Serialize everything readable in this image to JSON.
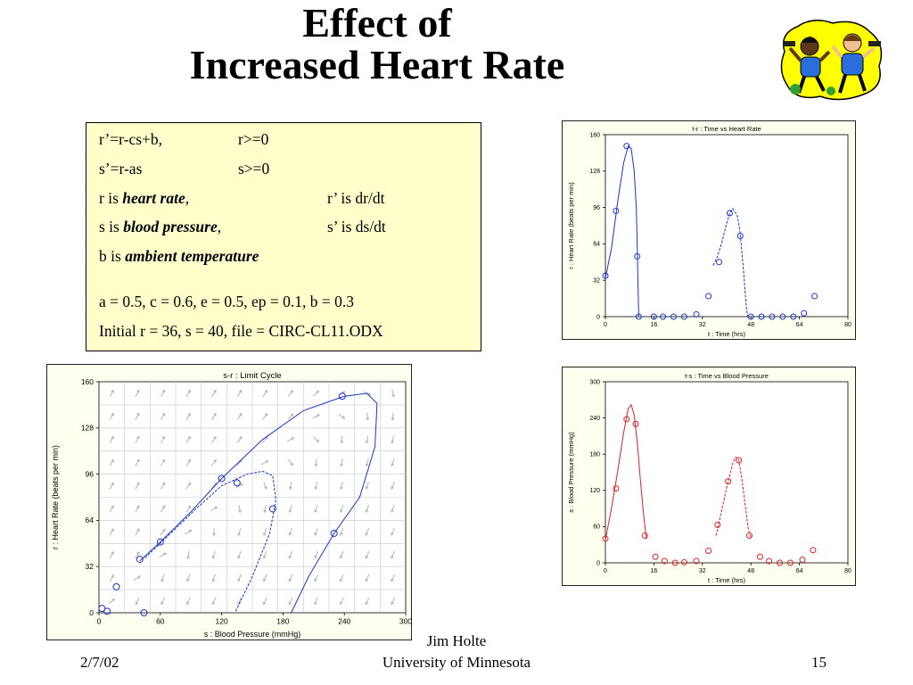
{
  "slide": {
    "title_line1": "Effect of",
    "title_line2": "Increased Heart Rate",
    "clipart_icon": "exercising-people-clipart",
    "footer": {
      "date": "2/7/02",
      "author": "Jim Holte",
      "org": "University of Minnesota",
      "page": "15"
    }
  },
  "equations": {
    "eq1_left": "r’=r-cs+b,",
    "eq1_right": "r>=0",
    "eq2_left": "s’=r-as",
    "eq2_right": "s>=0",
    "def_r_prefix": "r is ",
    "def_r_term": "heart rate",
    "def_r_suffix": ",",
    "def_r_deriv": "r’ is dr/dt",
    "def_s_prefix": "s is ",
    "def_s_term": "blood pressure",
    "def_s_suffix": ",",
    "def_s_deriv": "s’ is ds/dt",
    "def_b_prefix": "b is ",
    "def_b_term": "ambient temperature",
    "params": "a = 0.5, c = 0.6, e = 0.5, ep = 0.1, b = 0.3",
    "initial": "Initial r = 36, s = 40, file = CIRC-CL11.ODX"
  },
  "colors": {
    "blue_series": "#1a35c8",
    "red_series": "#e02020",
    "box_fill": "#ffffcc",
    "plot_fill": "#fffff0",
    "vector_arrows": "#b4b4b4"
  },
  "chart_data": [
    {
      "id": "chart_tr",
      "type": "line",
      "title": "t-r : Time vs Heart Rate",
      "xlabel": "t : Time (hrs)",
      "ylabel": "r : Heart Rate (beats per min)",
      "xlim": [
        0,
        80
      ],
      "ylim": [
        0,
        160
      ],
      "xticks": [
        0,
        16,
        32,
        48,
        64,
        80
      ],
      "yticks": [
        0,
        32,
        64,
        96,
        128,
        160
      ],
      "color": "#1a35c8",
      "markers": [
        [
          0,
          36
        ],
        [
          3.5,
          93
        ],
        [
          7,
          150
        ],
        [
          10.5,
          53
        ],
        [
          11,
          0
        ],
        [
          16,
          0
        ],
        [
          19,
          0
        ],
        [
          22.5,
          0
        ],
        [
          26,
          0
        ],
        [
          30,
          2
        ],
        [
          34,
          18
        ],
        [
          37.5,
          48
        ],
        [
          41,
          91
        ],
        [
          44.5,
          71
        ],
        [
          48,
          0
        ],
        [
          51.5,
          0
        ],
        [
          55,
          0
        ],
        [
          58.5,
          0
        ],
        [
          62,
          0
        ],
        [
          65.5,
          3
        ],
        [
          69,
          18
        ]
      ],
      "curves": [
        [
          [
            0,
            34
          ],
          [
            2,
            60
          ],
          [
            4,
            100
          ],
          [
            6,
            135
          ],
          [
            7.5,
            150
          ],
          [
            8.5,
            148
          ],
          [
            9.5,
            128
          ],
          [
            10.2,
            95
          ],
          [
            10.6,
            50
          ],
          [
            11,
            0
          ]
        ],
        [
          [
            35.5,
            45
          ],
          [
            37,
            53
          ],
          [
            38.5,
            66
          ],
          [
            40,
            82
          ],
          [
            41,
            91
          ],
          [
            42,
            95
          ],
          [
            43.5,
            89
          ],
          [
            44.5,
            73
          ],
          [
            45.5,
            42
          ],
          [
            46.5,
            8
          ],
          [
            47,
            0
          ]
        ]
      ]
    },
    {
      "id": "chart_sr",
      "type": "line",
      "title": "s-r : Limit Cycle",
      "xlabel": "s : Blood Pressure (mmHg)",
      "ylabel": "r : Heart Rate (beats per min)",
      "xlim": [
        0,
        300
      ],
      "ylim": [
        0,
        160
      ],
      "xticks": [
        0,
        60,
        120,
        180,
        240,
        300
      ],
      "yticks": [
        0,
        32,
        64,
        96,
        128,
        160
      ],
      "color": "#1a35c8",
      "markers": [
        [
          3,
          3
        ],
        [
          8,
          1
        ],
        [
          17,
          18
        ],
        [
          44,
          0
        ],
        [
          40,
          37
        ],
        [
          60,
          49
        ],
        [
          120,
          93
        ],
        [
          135,
          90
        ],
        [
          170,
          72
        ],
        [
          230,
          55
        ],
        [
          238,
          150
        ]
      ],
      "curves": [
        [
          [
            40,
            36
          ],
          [
            60,
            49
          ],
          [
            90,
            70
          ],
          [
            120,
            93
          ],
          [
            160,
            120
          ],
          [
            200,
            140
          ],
          [
            240,
            150
          ],
          [
            262,
            152
          ],
          [
            272,
            145
          ],
          [
            270,
            115
          ],
          [
            255,
            80
          ],
          [
            230,
            55
          ],
          [
            205,
            25
          ],
          [
            188,
            0
          ]
        ],
        [
          [
            45,
            38
          ],
          [
            70,
            55
          ],
          [
            95,
            72
          ],
          [
            120,
            88
          ],
          [
            145,
            96
          ],
          [
            160,
            98
          ],
          [
            170,
            95
          ],
          [
            173,
            78
          ],
          [
            167,
            55
          ],
          [
            150,
            25
          ],
          [
            133,
            0
          ]
        ]
      ]
    },
    {
      "id": "chart_ts",
      "type": "line",
      "title": "t-s : Time vs Blood Pressure",
      "xlabel": "t : Time (hrs)",
      "ylabel": "s : Blood Pressure (mmHg)",
      "xlim": [
        0,
        80
      ],
      "ylim": [
        0,
        300
      ],
      "xticks": [
        0,
        16,
        32,
        48,
        64,
        80
      ],
      "yticks": [
        0,
        60,
        120,
        180,
        240,
        300
      ],
      "color": "#e02020",
      "markers": [
        [
          0,
          40
        ],
        [
          3.5,
          123
        ],
        [
          7,
          238
        ],
        [
          10,
          230
        ],
        [
          13,
          45
        ],
        [
          16.5,
          10
        ],
        [
          19.5,
          3
        ],
        [
          23,
          0
        ],
        [
          26,
          1
        ],
        [
          30,
          3
        ],
        [
          34,
          20
        ],
        [
          37,
          63
        ],
        [
          40.5,
          135
        ],
        [
          44,
          170
        ],
        [
          47.5,
          45
        ],
        [
          51,
          10
        ],
        [
          54,
          3
        ],
        [
          57.5,
          0
        ],
        [
          61,
          0
        ],
        [
          65,
          5
        ],
        [
          68.5,
          21
        ]
      ],
      "curves": [
        [
          [
            0,
            38
          ],
          [
            2,
            90
          ],
          [
            4,
            150
          ],
          [
            6,
            215
          ],
          [
            7.5,
            255
          ],
          [
            8.5,
            262
          ],
          [
            9.5,
            245
          ],
          [
            10.5,
            200
          ],
          [
            11.5,
            140
          ],
          [
            12.5,
            85
          ],
          [
            13.5,
            40
          ]
        ],
        [
          [
            36.5,
            45
          ],
          [
            38.5,
            90
          ],
          [
            40.5,
            135
          ],
          [
            42,
            165
          ],
          [
            43,
            175
          ],
          [
            44,
            170
          ],
          [
            45,
            140
          ],
          [
            46,
            100
          ],
          [
            47,
            60
          ],
          [
            48,
            40
          ]
        ]
      ]
    }
  ]
}
